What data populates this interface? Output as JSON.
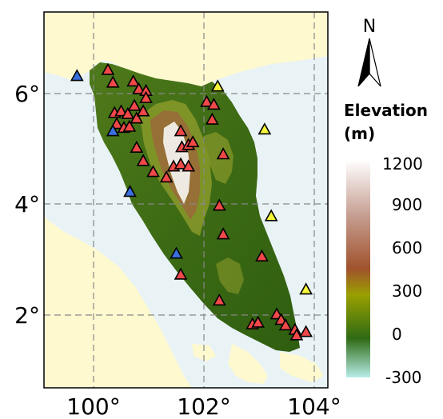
{
  "map": {
    "x_ticks": [
      "100°",
      "102°",
      "104°"
    ],
    "y_ticks": [
      "6°",
      "4°",
      "2°"
    ],
    "north_label": "N",
    "colors": {
      "sea": "#e9f3f6",
      "land_other": "#fff9cf",
      "lowland": "#3d6b14",
      "midland": "#8a9a2a",
      "upland": "#9a6a3a",
      "peak": "#ffffff"
    }
  },
  "legend": {
    "title_line1": "Elevation",
    "title_line2": "(m)",
    "ticks": [
      "1200",
      "900",
      "600",
      "300",
      "0",
      "-300"
    ],
    "gradient_colors": [
      "#ffffff",
      "#c7a093",
      "#a0522d",
      "#9aa000",
      "#2f6b14",
      "#b7ece8"
    ]
  },
  "stations": {
    "red": [
      [
        100.26,
        6.43
      ],
      [
        100.35,
        6.2
      ],
      [
        100.72,
        6.22
      ],
      [
        100.82,
        6.08
      ],
      [
        100.95,
        6.05
      ],
      [
        100.38,
        5.65
      ],
      [
        100.5,
        5.68
      ],
      [
        100.62,
        5.63
      ],
      [
        100.78,
        5.55
      ],
      [
        100.9,
        5.68
      ],
      [
        100.74,
        5.78
      ],
      [
        100.95,
        5.92
      ],
      [
        100.42,
        5.45
      ],
      [
        100.55,
        5.38
      ],
      [
        100.65,
        5.4
      ],
      [
        100.78,
        5.02
      ],
      [
        100.9,
        4.78
      ],
      [
        101.08,
        4.58
      ],
      [
        101.32,
        4.48
      ],
      [
        101.45,
        4.68
      ],
      [
        101.58,
        4.72
      ],
      [
        101.72,
        4.68
      ],
      [
        101.6,
        5.03
      ],
      [
        101.72,
        5.07
      ],
      [
        101.8,
        5.12
      ],
      [
        101.58,
        5.32
      ],
      [
        102.05,
        5.85
      ],
      [
        102.18,
        5.8
      ],
      [
        102.15,
        5.53
      ],
      [
        102.35,
        4.9
      ],
      [
        102.28,
        3.97
      ],
      [
        102.35,
        3.45
      ],
      [
        103.05,
        3.05
      ],
      [
        101.58,
        2.72
      ],
      [
        102.28,
        2.25
      ],
      [
        102.88,
        1.82
      ],
      [
        102.98,
        1.85
      ],
      [
        103.32,
        2.0
      ],
      [
        103.4,
        1.9
      ],
      [
        103.48,
        1.8
      ],
      [
        103.65,
        1.72
      ],
      [
        103.68,
        1.62
      ],
      [
        103.85,
        1.68
      ]
    ],
    "yellow": [
      [
        102.25,
        6.13
      ],
      [
        103.1,
        5.35
      ],
      [
        103.22,
        3.78
      ],
      [
        103.85,
        2.45
      ]
    ],
    "blue": [
      [
        99.7,
        6.32
      ],
      [
        100.35,
        5.32
      ],
      [
        100.66,
        4.22
      ],
      [
        101.5,
        3.1
      ]
    ]
  }
}
